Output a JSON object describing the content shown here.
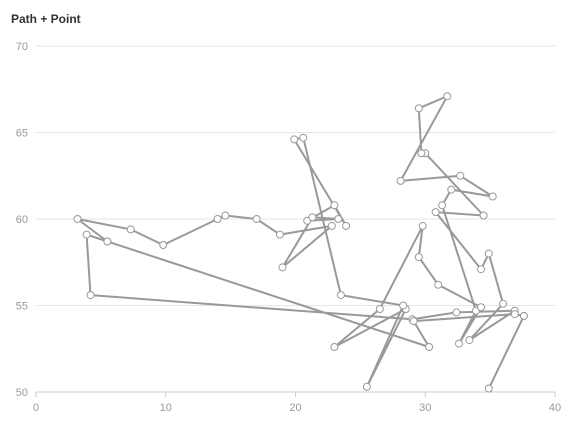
{
  "chart_data": {
    "type": "line",
    "title": "Path + Point",
    "xlabel": "",
    "ylabel": "",
    "xlim": [
      0,
      40
    ],
    "ylim": [
      50,
      70
    ],
    "x_ticks": [
      0,
      10,
      20,
      30,
      40
    ],
    "y_ticks": [
      50,
      55,
      60,
      65,
      70
    ],
    "grid": true,
    "markers": "open-circle",
    "colors": {
      "line": "#999999",
      "marker_fill": "#ffffff",
      "marker_stroke": "#999999",
      "grid": "#e6e6e6",
      "axis": "#cccccc",
      "tick_label": "#999999",
      "title": "#333333"
    },
    "series": [
      {
        "points": [
          [
            5.5,
            58.7
          ],
          [
            3.9,
            59.1
          ],
          [
            4.2,
            55.6
          ],
          [
            29.0,
            54.2
          ],
          [
            32.4,
            54.6
          ],
          [
            36.9,
            54.7
          ],
          [
            33.4,
            53.0
          ],
          [
            36.0,
            55.1
          ],
          [
            34.9,
            58.0
          ],
          [
            34.3,
            57.1
          ],
          [
            30.8,
            60.4
          ],
          [
            34.5,
            60.2
          ],
          [
            30.0,
            63.8
          ],
          [
            29.7,
            63.8
          ],
          [
            29.5,
            66.4
          ],
          [
            31.7,
            67.1
          ],
          [
            28.1,
            62.2
          ],
          [
            32.7,
            62.5
          ],
          [
            35.2,
            61.3
          ],
          [
            32.0,
            61.7
          ],
          [
            31.3,
            60.8
          ],
          [
            33.9,
            54.7
          ],
          [
            32.6,
            52.8
          ],
          [
            34.3,
            54.9
          ],
          [
            31.0,
            56.2
          ],
          [
            29.5,
            57.8
          ],
          [
            29.8,
            59.6
          ],
          [
            26.5,
            54.8
          ],
          [
            23.0,
            52.6
          ],
          [
            28.5,
            54.8
          ],
          [
            25.5,
            50.3
          ],
          [
            28.3,
            55.0
          ],
          [
            23.5,
            55.6
          ],
          [
            20.6,
            64.7
          ],
          [
            19.9,
            64.6
          ],
          [
            23.9,
            59.6
          ],
          [
            23.0,
            60.8
          ],
          [
            20.9,
            59.9
          ],
          [
            23.3,
            60.0
          ],
          [
            21.3,
            60.1
          ],
          [
            19.0,
            57.2
          ],
          [
            22.8,
            59.6
          ],
          [
            18.8,
            59.1
          ],
          [
            17.0,
            60.0
          ],
          [
            14.6,
            60.2
          ],
          [
            14.0,
            60.0
          ],
          [
            9.8,
            58.5
          ],
          [
            7.3,
            59.4
          ],
          [
            3.2,
            60.0
          ],
          [
            5.5,
            58.7
          ],
          [
            30.3,
            52.6
          ],
          [
            29.1,
            54.1
          ],
          [
            36.9,
            54.5
          ],
          [
            37.6,
            54.4
          ],
          [
            34.9,
            50.2
          ],
          [
            37.6,
            54.4
          ]
        ]
      }
    ]
  }
}
